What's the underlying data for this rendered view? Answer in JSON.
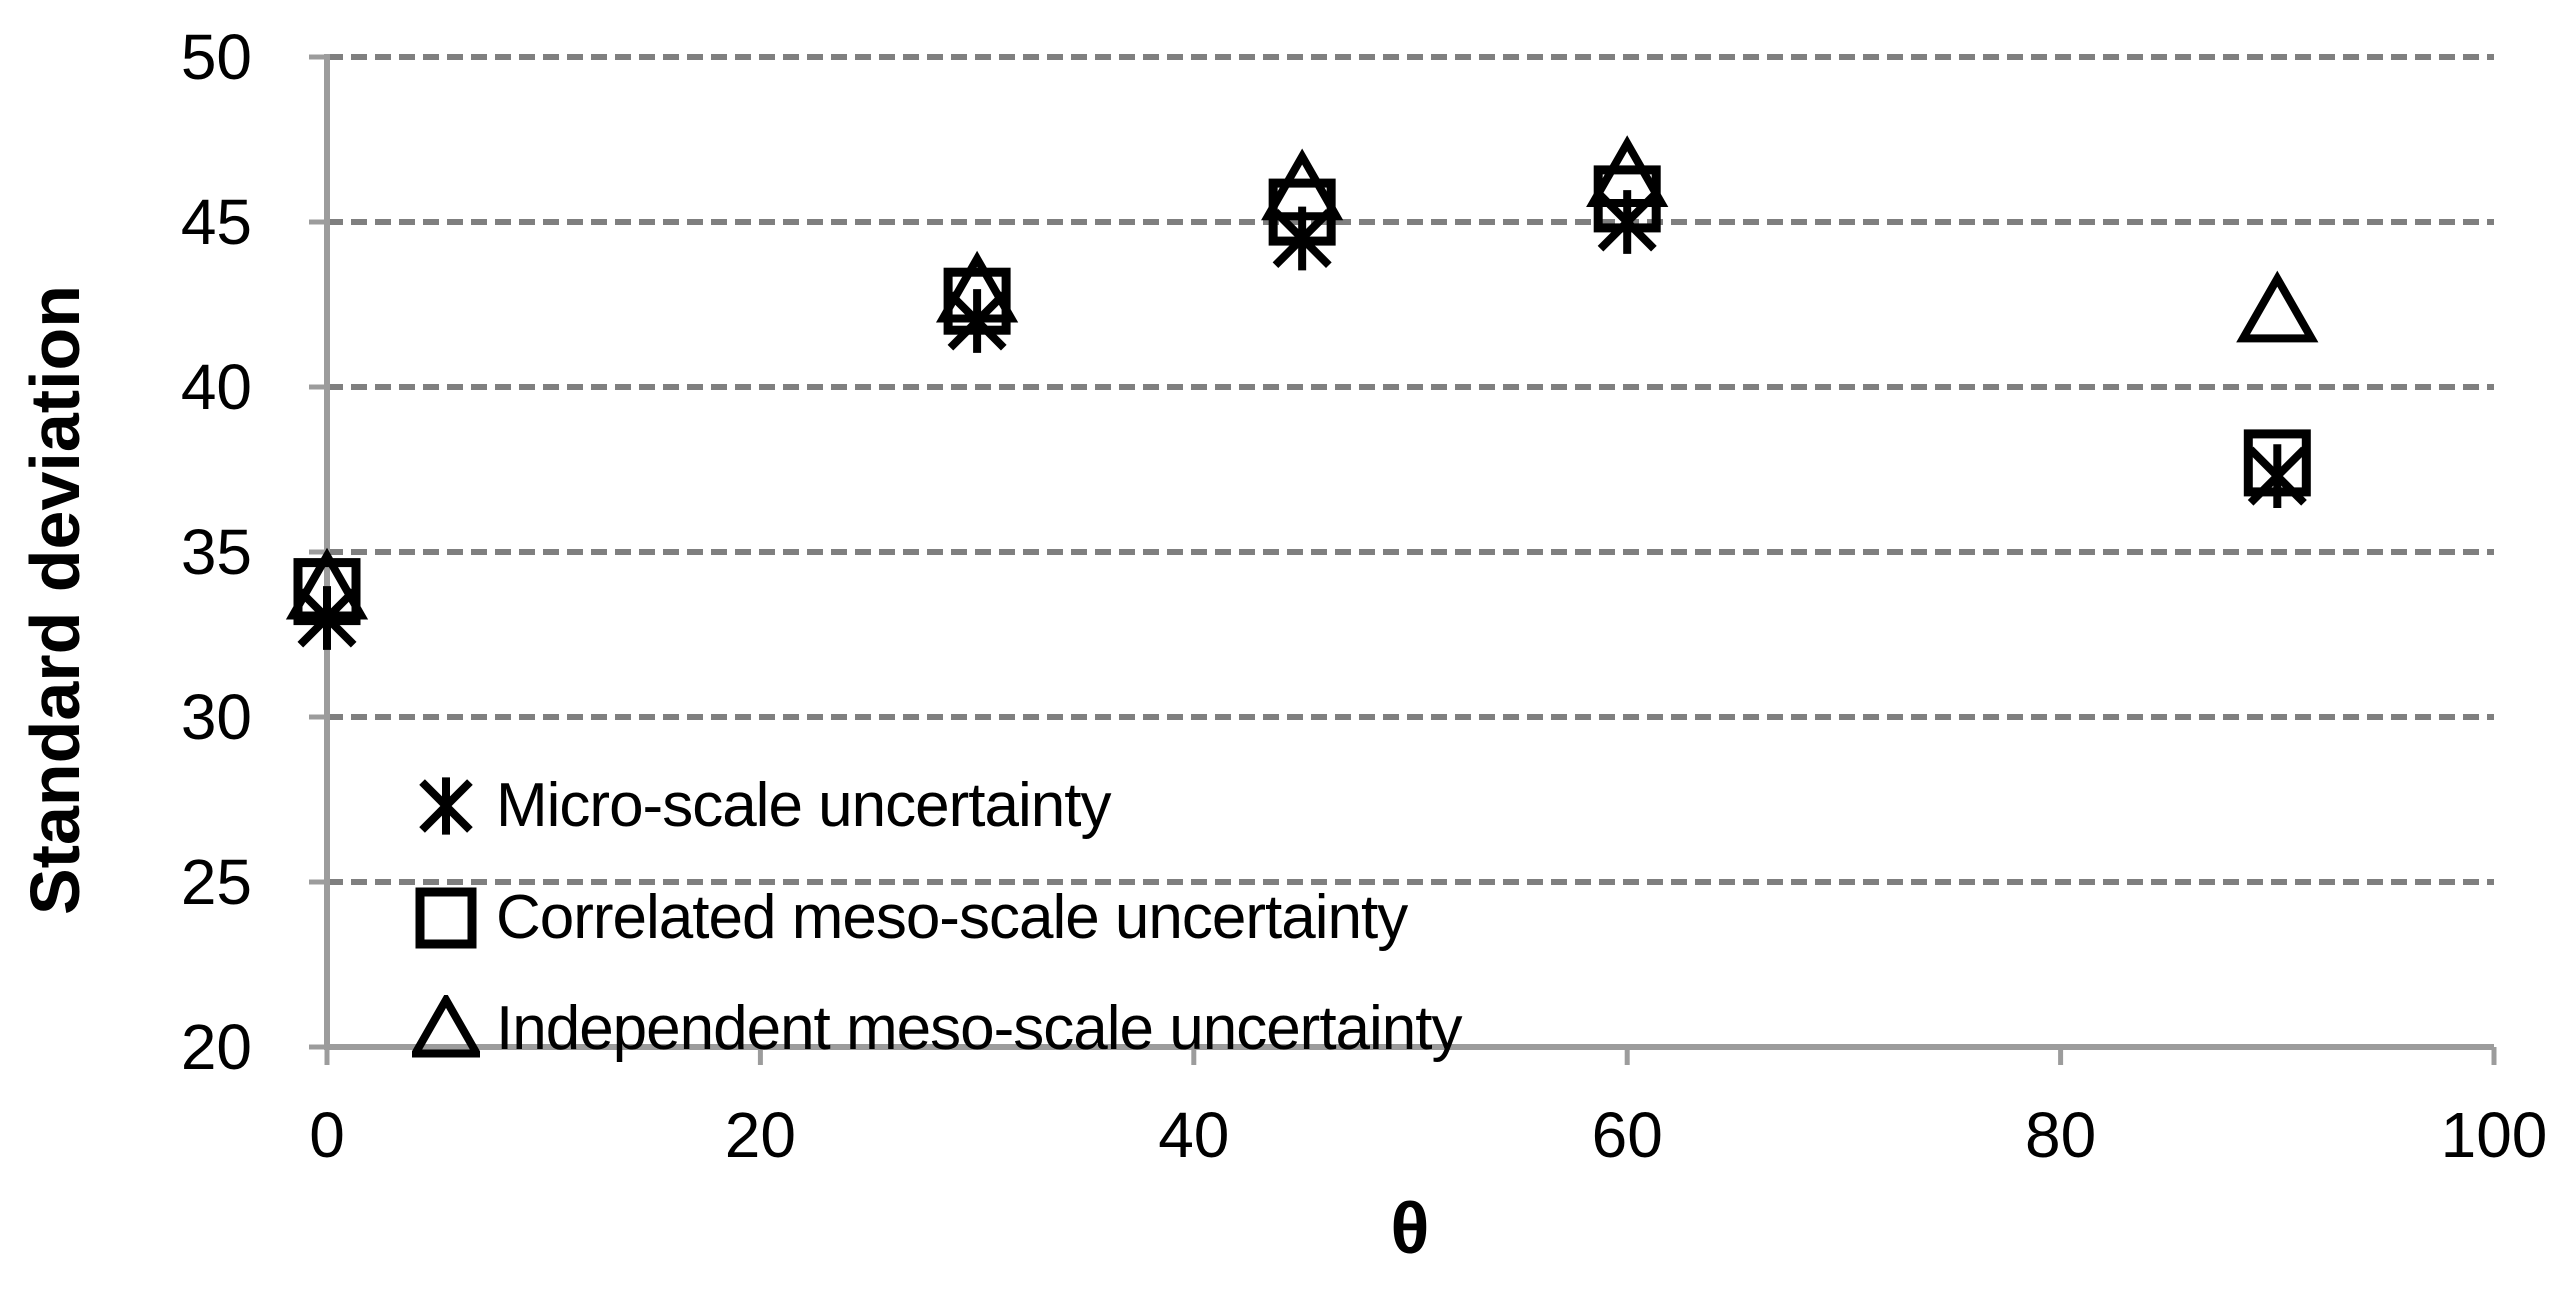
{
  "chart_data": {
    "type": "scatter",
    "title": "",
    "xlabel": "θ",
    "ylabel": "Standard deviation",
    "xlim": [
      0,
      100
    ],
    "ylim": [
      20,
      50
    ],
    "xticks": [
      0,
      20,
      40,
      60,
      80,
      100
    ],
    "yticks": [
      20,
      25,
      30,
      35,
      40,
      45,
      50
    ],
    "grid": "horizontal dashed gridlines at y = 25,30,35,40,45,50",
    "legend_position": "inside lower-left",
    "series": [
      {
        "name": "Micro-scale uncertainty",
        "marker": "asterisk",
        "points": [
          [
            0,
            33.0
          ],
          [
            30,
            42.0
          ],
          [
            45,
            44.5
          ],
          [
            60,
            45.0
          ],
          [
            90,
            37.3
          ]
        ]
      },
      {
        "name": "Correlated meso-scale uncertainty",
        "marker": "square",
        "points": [
          [
            0,
            33.8
          ],
          [
            30,
            42.6
          ],
          [
            45,
            45.3
          ],
          [
            60,
            45.7
          ],
          [
            90,
            37.7
          ]
        ]
      },
      {
        "name": "Independent meso-scale uncertainty",
        "marker": "triangle",
        "points": [
          [
            0,
            33.9
          ],
          [
            30,
            42.9
          ],
          [
            45,
            46.0
          ],
          [
            60,
            46.4
          ],
          [
            90,
            42.3
          ]
        ]
      }
    ]
  },
  "colors": {
    "marker": "#000000",
    "grid": "#7f7f7f",
    "axis": "#9c9c9c",
    "text": "#000000",
    "background": "#ffffff"
  }
}
